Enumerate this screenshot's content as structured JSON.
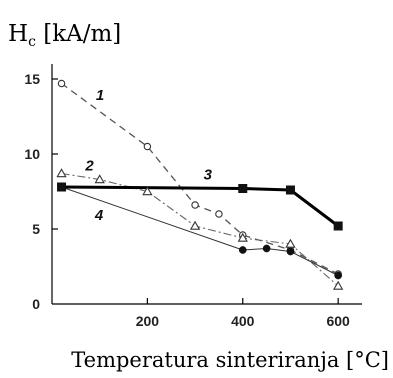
{
  "chart_data": {
    "type": "line",
    "ylabel": {
      "main": "H",
      "sub": "c",
      "unit": " [kA/m]"
    },
    "xlabel": "Temperatura sinteriranja [°C]",
    "xlim": [
      0,
      650
    ],
    "ylim": [
      0,
      16
    ],
    "xticks": [
      200,
      400,
      600
    ],
    "yticks": [
      0,
      5,
      10,
      15
    ],
    "grid": false,
    "legend": "none",
    "series": [
      {
        "name": "1",
        "marker": "circle-open",
        "line": "dashed",
        "x": [
          20,
          200,
          300,
          350,
          400,
          500,
          600
        ],
        "y": [
          14.7,
          10.5,
          6.6,
          6.0,
          4.6,
          3.6,
          2.0
        ]
      },
      {
        "name": "2",
        "marker": "triangle-open",
        "line": "dashdot",
        "x": [
          20,
          100,
          200,
          300,
          400,
          500,
          600
        ],
        "y": [
          8.7,
          8.3,
          7.5,
          5.2,
          4.4,
          4.0,
          1.2
        ]
      },
      {
        "name": "3",
        "marker": "square-filled",
        "line": "solid-thick",
        "x": [
          20,
          400,
          500,
          600
        ],
        "y": [
          7.8,
          7.7,
          7.6,
          5.2
        ]
      },
      {
        "name": "4",
        "marker": "circle-filled",
        "line": "solid-thin",
        "x": [
          20,
          400,
          450,
          500,
          600
        ],
        "y": [
          7.8,
          3.6,
          3.7,
          3.5,
          1.9
        ]
      }
    ]
  }
}
